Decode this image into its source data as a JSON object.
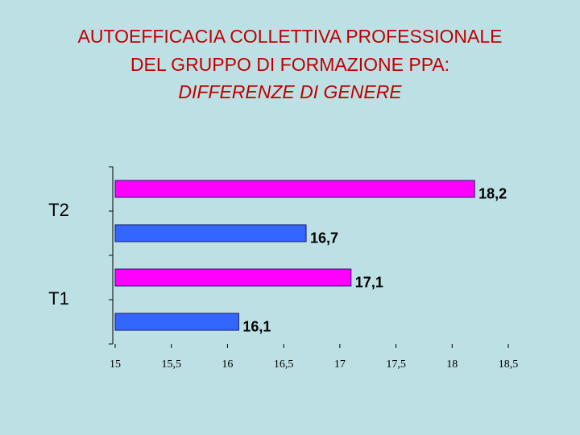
{
  "chart_data": {
    "type": "hbar",
    "title": "AUTOEFFICACIA COLLETTIVA PROFESSIONALE",
    "title_line2": "DEL GRUPPO DI FORMAZIONE PPA:",
    "subtitle": "DIFFERENZE DI GENERE",
    "categories": [
      "T1",
      "T2"
    ],
    "series": [
      {
        "color": "#3366ff",
        "values": [
          16.1,
          16.7
        ],
        "value_labels": [
          "16,1",
          "16,7"
        ]
      },
      {
        "color": "#ff00ff",
        "values": [
          17.1,
          18.2
        ],
        "value_labels": [
          "17,1",
          "18,2"
        ]
      }
    ],
    "xlim": [
      15,
      18.5
    ],
    "xticks": [
      15,
      {
        "value": 15.5,
        "label": "15,5"
      },
      16,
      {
        "value": 16.5,
        "label": "16,5"
      },
      17,
      {
        "value": 17.5,
        "label": "17,5"
      },
      18,
      {
        "value": 18.5,
        "label": "18,5"
      }
    ]
  }
}
